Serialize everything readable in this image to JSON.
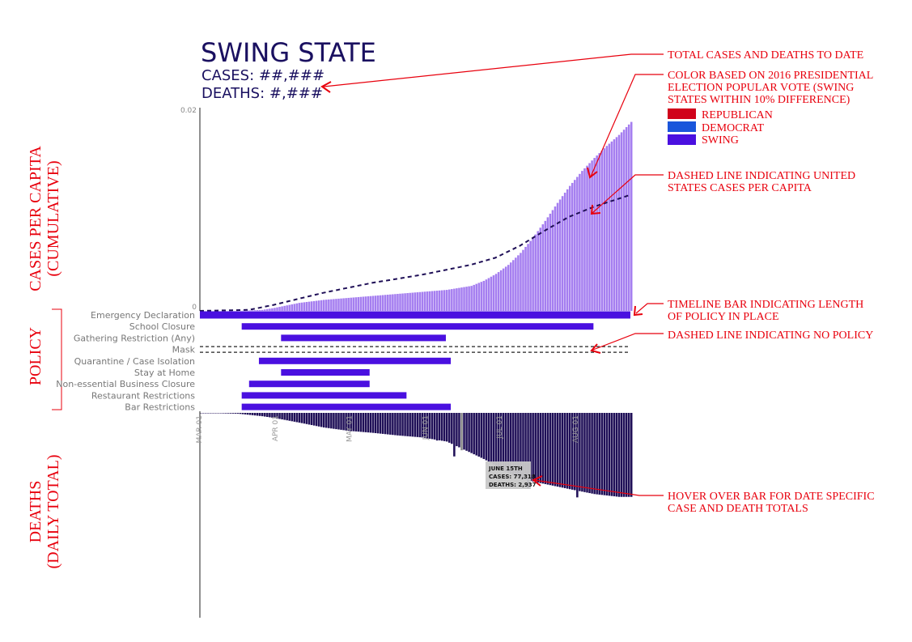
{
  "header": {
    "title": "SWING STATE",
    "cases_line": "CASES: ##,###",
    "deaths_line": "DEATHS: #,###"
  },
  "y_axis": {
    "cases_label_1": "CASES PER CAPITA",
    "cases_label_2": "(CUMULATIVE)",
    "policy_label": "POLICY",
    "deaths_label_1": "DEATHS",
    "deaths_label_2": "(DAILY TOTAL)"
  },
  "legend": {
    "republican": "REPUBLICAN",
    "democrat": "DEMOCRAT",
    "swing": "SWING"
  },
  "annotations": {
    "totals": "TOTAL CASES AND DEATHS TO DATE",
    "color_1": "COLOR BASED ON 2016 PRESIDENTIAL",
    "color_2": "ELECTION POPULAR VOTE (SWING",
    "color_3": "STATES WITHIN 10% DIFFERENCE)",
    "dashed_us_1": "DASHED LINE INDICATING UNITED",
    "dashed_us_2": "STATES CASES PER CAPITA",
    "timeline_1": "TIMELINE BAR INDICATING LENGTH",
    "timeline_2": "OF POLICY IN PLACE",
    "no_policy": "DASHED LINE INDICATING NO POLICY",
    "hover_1": "HOVER OVER BAR FOR DATE SPECIFIC",
    "hover_2": "CASE AND DEATH TOTALS"
  },
  "tooltip": {
    "date": "JUNE 15TH",
    "cases": "CASES: 77,318",
    "deaths": "DEATHS: 2,937"
  },
  "colors": {
    "republican": "#d0021b",
    "democrat": "#1a56db",
    "swing": "#4a10e0",
    "swing_light": "#a57ef0",
    "deaths_bar": "#1f0f57",
    "title": "#1a1060",
    "annotation": "#e8000d"
  },
  "chart_data": {
    "type": "bar",
    "title": "SWING STATE",
    "x": {
      "start": "2020-03-01",
      "days": 176,
      "ticks": [
        "MAR 01",
        "APR 01",
        "MAY 01",
        "JUN 01",
        "JUL 01",
        "AUG 01"
      ]
    },
    "cases_per_capita": {
      "ylabel": "CASES PER CAPITA (CUMULATIVE)",
      "ylim": [
        0,
        0.02
      ],
      "yticks": [
        "0",
        "0.02"
      ],
      "series": [
        {
          "name": "Swing state",
          "anchors": [
            [
              0,
              0
            ],
            [
              15,
              0
            ],
            [
              25,
              0.0001
            ],
            [
              30,
              0.0003
            ],
            [
              40,
              0.0008
            ],
            [
              50,
              0.0011
            ],
            [
              60,
              0.0013
            ],
            [
              70,
              0.0015
            ],
            [
              80,
              0.0017
            ],
            [
              90,
              0.0019
            ],
            [
              100,
              0.0021
            ],
            [
              110,
              0.0025
            ],
            [
              115,
              0.003
            ],
            [
              120,
              0.0037
            ],
            [
              125,
              0.0046
            ],
            [
              130,
              0.0058
            ],
            [
              135,
              0.0073
            ],
            [
              140,
              0.009
            ],
            [
              145,
              0.0108
            ],
            [
              150,
              0.0125
            ],
            [
              155,
              0.014
            ],
            [
              160,
              0.0153
            ],
            [
              165,
              0.0165
            ],
            [
              170,
              0.0176
            ],
            [
              175,
              0.0189
            ]
          ]
        },
        {
          "name": "United States",
          "style": "dashed",
          "anchors": [
            [
              0,
              0
            ],
            [
              20,
              0.0001
            ],
            [
              30,
              0.0006
            ],
            [
              40,
              0.0012
            ],
            [
              50,
              0.0018
            ],
            [
              60,
              0.0023
            ],
            [
              70,
              0.0028
            ],
            [
              80,
              0.0032
            ],
            [
              90,
              0.0036
            ],
            [
              100,
              0.0041
            ],
            [
              110,
              0.0046
            ],
            [
              120,
              0.0053
            ],
            [
              130,
              0.0065
            ],
            [
              140,
              0.008
            ],
            [
              150,
              0.0094
            ],
            [
              160,
              0.0104
            ],
            [
              170,
              0.0112
            ],
            [
              175,
              0.0116
            ]
          ]
        }
      ]
    },
    "policies": [
      {
        "name": "Emergency Declaration",
        "start": 0,
        "end": 175,
        "active": true
      },
      {
        "name": "School Closure",
        "start": 17,
        "end": 160,
        "active": true
      },
      {
        "name": "Gathering Restriction (Any)",
        "start": 33,
        "end": 100,
        "active": true
      },
      {
        "name": "Mask",
        "start": 0,
        "end": 175,
        "active": false
      },
      {
        "name": "Quarantine / Case Isolation",
        "start": 24,
        "end": 102,
        "active": true
      },
      {
        "name": "Stay at Home",
        "start": 33,
        "end": 69,
        "active": true
      },
      {
        "name": "Non-essential Business Closure",
        "start": 20,
        "end": 69,
        "active": true
      },
      {
        "name": "Restaurant Restrictions",
        "start": 17,
        "end": 84,
        "active": true
      },
      {
        "name": "Bar Restrictions",
        "start": 17,
        "end": 102,
        "active": true
      }
    ],
    "deaths": {
      "ylabel": "DEATHS (DAILY TOTAL)",
      "ylim": [
        0,
        8000
      ],
      "anchors": [
        [
          0,
          0
        ],
        [
          15,
          30
        ],
        [
          25,
          130
        ],
        [
          30,
          200
        ],
        [
          40,
          380
        ],
        [
          50,
          570
        ],
        [
          60,
          700
        ],
        [
          70,
          780
        ],
        [
          80,
          880
        ],
        [
          90,
          960
        ],
        [
          100,
          1120
        ],
        [
          110,
          1570
        ],
        [
          115,
          1800
        ],
        [
          120,
          2070
        ],
        [
          125,
          2330
        ],
        [
          130,
          2580
        ],
        [
          140,
          2780
        ],
        [
          150,
          2980
        ],
        [
          160,
          3170
        ],
        [
          170,
          3280
        ],
        [
          175,
          3280
        ]
      ],
      "spikes": [
        [
          96,
          1080
        ],
        [
          103,
          1700
        ],
        [
          133,
          2950
        ],
        [
          153,
          3300
        ]
      ],
      "highlight": {
        "day": 106,
        "label": "JUNE 15TH"
      }
    }
  }
}
